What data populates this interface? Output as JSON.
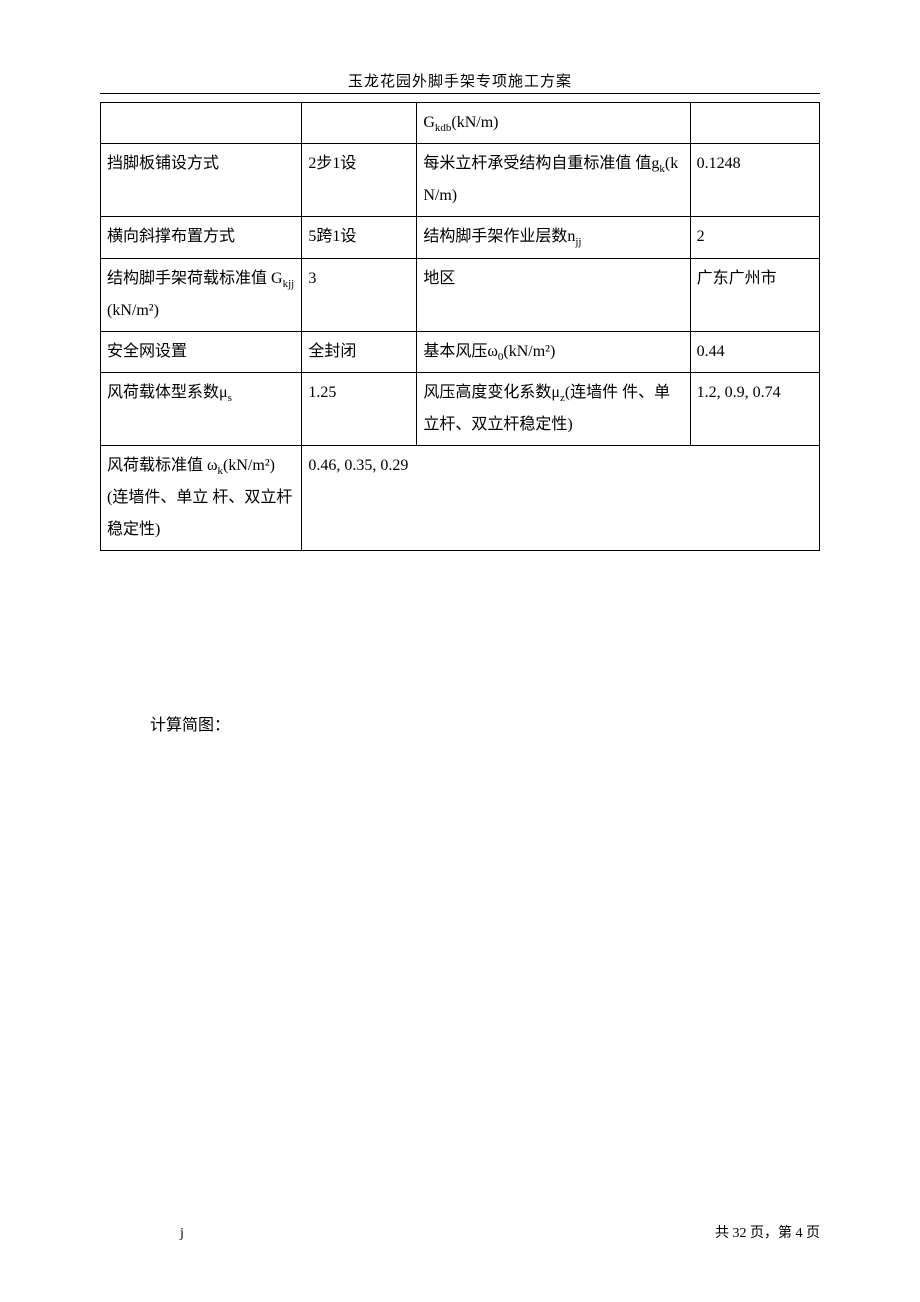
{
  "doc": {
    "title": "玉龙花园外脚手架专项施工方案",
    "section_label": "计算简图：",
    "footer_left": "j",
    "footer_right": "共 32 页，第 4 页"
  },
  "table": {
    "columns": [
      {
        "width_pct": 28
      },
      {
        "width_pct": 16
      },
      {
        "width_pct": 38
      },
      {
        "width_pct": 18
      }
    ],
    "border_color": "#000000",
    "font_size_pt": 12,
    "rows": [
      {
        "c1": "",
        "c2": "",
        "c3_html": "G<span class=\"sub\">kdb</span>(kN/m)",
        "c4": ""
      },
      {
        "c1": "挡脚板铺设方式",
        "c2": "2步1设",
        "c3_html": "每米立杆承受结构自重标准值 值g<span class=\"sub\">k</span>(kN/m)",
        "c4": "0.1248"
      },
      {
        "c1": "横向斜撑布置方式",
        "c2": "5跨1设",
        "c3_html": "结构脚手架作业层数n<span class=\"sub\">jj</span>",
        "c4": "2"
      },
      {
        "c1_html": "结构脚手架荷载标准值 G<span class=\"sub\">kjj</span>(kN/m²)",
        "c2": "3",
        "c3": "地区",
        "c4": "广东广州市"
      },
      {
        "c1": "安全网设置",
        "c2": "全封闭",
        "c3_html": "基本风压ω<span class=\"sub\">0</span>(kN/m²)",
        "c4": "0.44"
      },
      {
        "c1_html": "风荷载体型系数μ<span class=\"sub\">s</span>",
        "c2": "1.25",
        "c3_html": "风压高度变化系数μ<span class=\"sub\">z</span>(连墙件 件、单立杆、双立杆稳定性)",
        "c4": "1.2, 0.9, 0.74"
      },
      {
        "c1_html": "风荷载标准值 ω<span class=\"sub\">k</span>(kN/m²)(连墙件、单立 杆、双立杆稳定性)",
        "c2_colspan3": "0.46, 0.35, 0.29"
      }
    ]
  }
}
